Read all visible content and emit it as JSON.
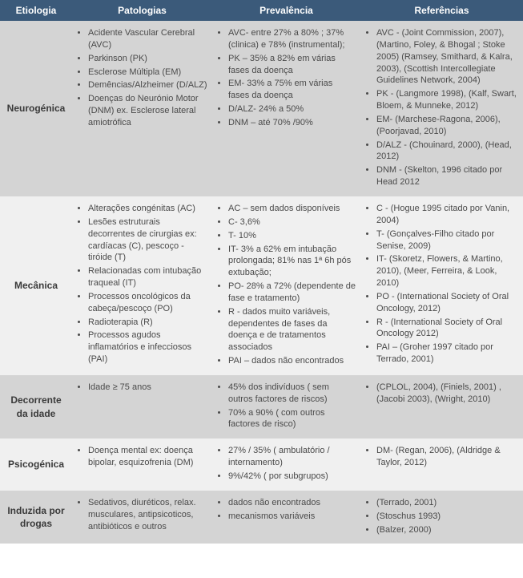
{
  "colors": {
    "header_bg": "#3b5a7a",
    "row_dark": "#d4d4d4",
    "row_light": "#f0f0f0",
    "text": "#4a4a4a",
    "header_text": "#ffffff"
  },
  "headers": {
    "etiologia": "Etiologia",
    "patologias": "Patologias",
    "prevalencia": "Prevalência",
    "referencias": "Referências"
  },
  "rows": [
    {
      "etiologia": "Neurogénica",
      "patologias": [
        "Acidente Vascular Cerebral (AVC)",
        "Parkinson (PK)",
        "Esclerose Múltipla (EM)",
        "Demências/Alzheimer (D/ALZ)",
        "Doenças do Neurónio Motor (DNM) ex. Esclerose lateral amiotrófica"
      ],
      "prevalencia": [
        "AVC- entre 27% a 80% ; 37% (clinica) e 78% (instrumental);",
        "PK – 35% a 82% em várias fases da doença",
        "EM- 33% a 75% em várias fases da doença",
        "D/ALZ- 24% a 50%",
        "DNM – até 70% /90%"
      ],
      "referencias": [
        "AVC - (Joint Commission, 2007), (Martino, Foley, & Bhogal ; Stoke 2005) (Ramsey, Smithard, & Kalra, 2003), (Scottish Intercollegiate Guidelines Network, 2004)",
        "PK - (Langmore 1998), (Kalf, Swart, Bloem, & Munneke, 2012)",
        "EM- (Marchese-Ragona, 2006), (Poorjavad, 2010)",
        "D/ALZ - (Chouinard, 2000), (Head, 2012)",
        "DNM - (Skelton, 1996 citado por Head 2012"
      ]
    },
    {
      "etiologia": "Mecânica",
      "patologias": [
        "Alterações congénitas (AC)",
        "Lesões estruturais decorrentes de cirurgias ex: cardíacas (C), pescoço - tiróide (T)",
        "Relacionadas com intubação traqueal (IT)",
        "Processos oncológicos da cabeça/pescoço (PO)",
        "Radioterapia (R)",
        "Processos agudos inflamatórios e infecciosos (PAI)"
      ],
      "prevalencia": [
        "AC – sem dados disponíveis",
        "C- 3,6%",
        "T- 10%",
        "IT- 3% a 62% em intubação prolongada; 81% nas 1ª 6h pós extubação;",
        "PO- 28% a 72% (dependente de fase e tratamento)",
        "R - dados muito variáveis, dependentes de fases da doença e de tratamentos associados",
        "PAI – dados não encontrados"
      ],
      "referencias": [
        "C - (Hogue 1995 citado por Vanin, 2004)",
        "T- (Gonçalves-Filho citado por Senise, 2009)",
        "IT- (Skoretz, Flowers, & Martino, 2010), (Meer, Ferreira, & Look, 2010)",
        "PO - (International Society of Oral Oncology, 2012)",
        "R - (International Society of Oral Oncology  2012)",
        "PAI – (Groher 1997 citado por Terrado, 2001)"
      ]
    },
    {
      "etiologia": "Decorrente da idade",
      "patologias": [
        "Idade ≥ 75 anos"
      ],
      "prevalencia": [
        "45% dos indivíduos ( sem outros factores de riscos)",
        "70% a 90% ( com outros factores de risco)"
      ],
      "referencias": [
        "(CPLOL, 2004), (Finiels, 2001) , (Jacobi 2003), (Wright, 2010)"
      ]
    },
    {
      "etiologia": "Psicogénica",
      "patologias": [
        "Doença mental  ex: doença bipolar, esquizofrenia (DM)"
      ],
      "prevalencia": [
        "27% / 35% ( ambulatório / internamento)",
        "9%/42% ( por subgrupos)"
      ],
      "referencias": [
        "DM- (Regan, 2006), (Aldridge & Taylor, 2012)"
      ]
    },
    {
      "etiologia": "Induzida por drogas",
      "patologias": [
        "Sedativos, diuréticos, relax. musculares, antipsicoticos, antibióticos e outros"
      ],
      "prevalencia": [
        "dados  não encontrados",
        "mecanismos variáveis"
      ],
      "referencias": [
        "(Terrado, 2001)",
        "(Stoschus 1993)",
        "(Balzer, 2000)"
      ]
    }
  ]
}
